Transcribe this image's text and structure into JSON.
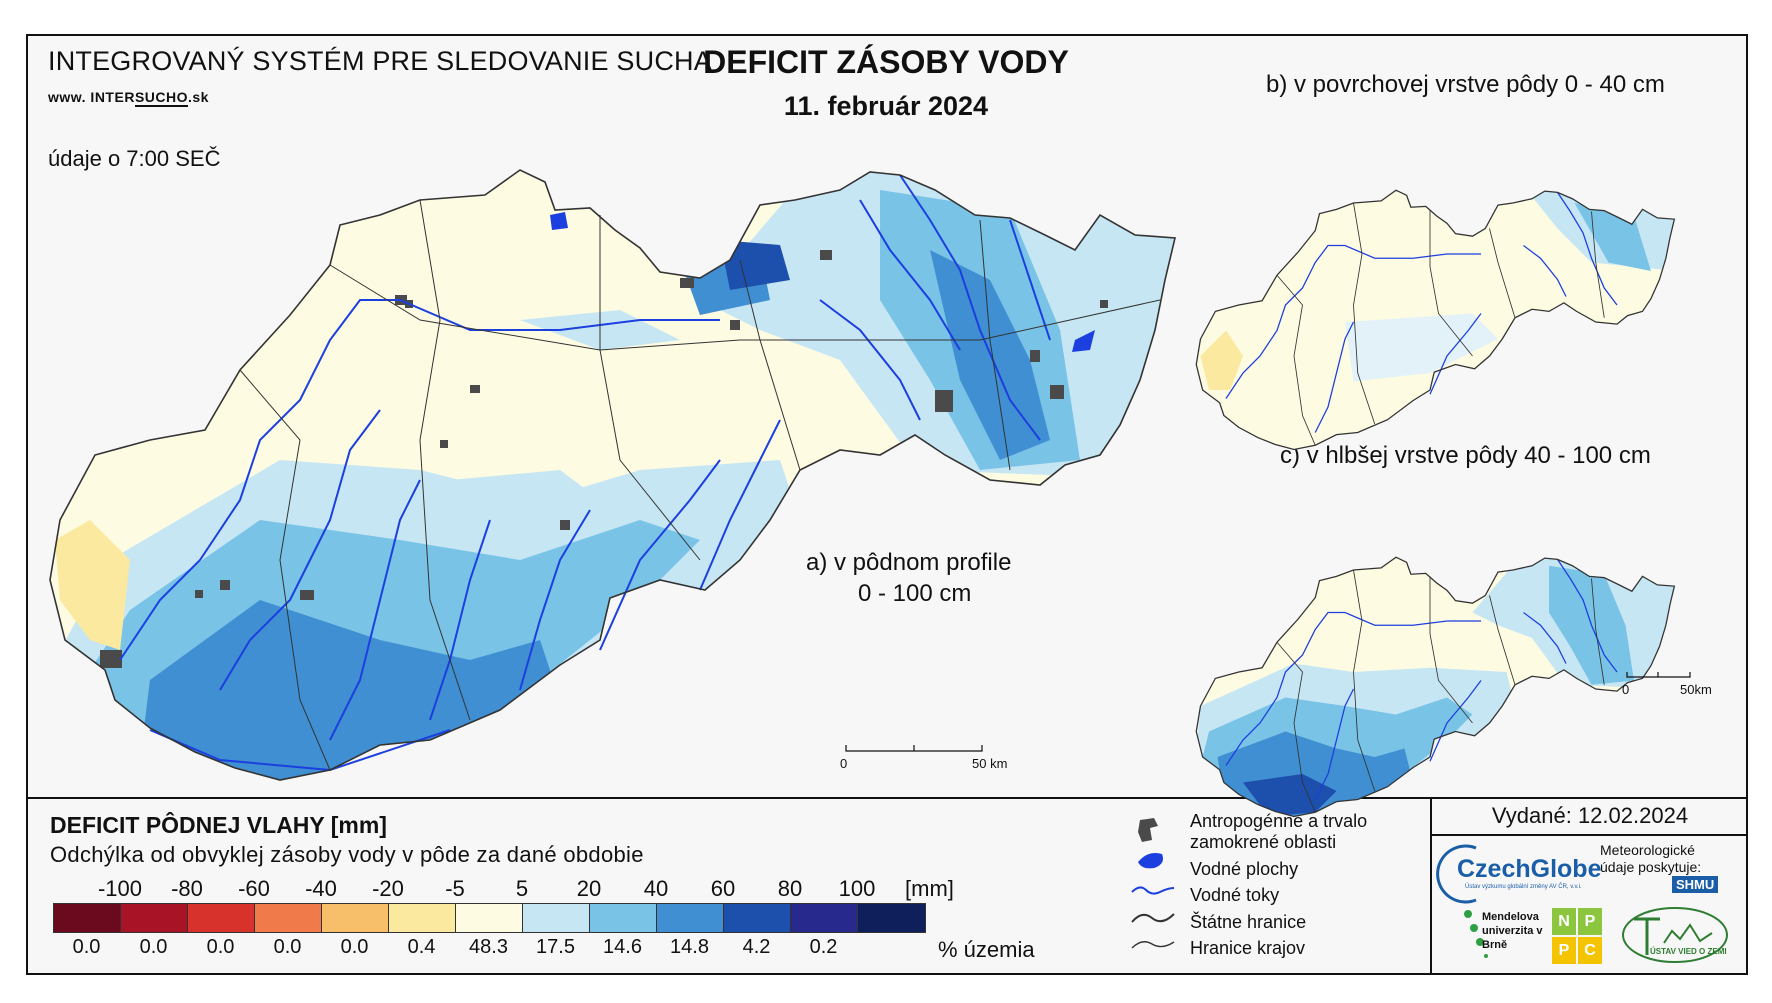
{
  "header": {
    "system_title": "INTEGROVANÝ SYSTÉM PRE SLEDOVANIE SUCHA",
    "website_prefix": "www. INTER",
    "website_highlight": "SUCHO",
    "website_suffix": ".sk",
    "time_note": "údaje o 7:00 SEČ",
    "title": "DEFICIT ZÁSOBY VODY",
    "date": "11. február 2024"
  },
  "panels": {
    "a_line1": "a) v pôdnom profile",
    "a_line2": "0 - 100 cm",
    "b": "b) v povrchovej vrstve pôdy 0 - 40 cm",
    "c": "c) v hlbšej vrstve pôdy 40 - 100 cm"
  },
  "scale_bars": {
    "main_zero": "0",
    "main_end": "50 km",
    "small_zero": "0",
    "small_end": "50km"
  },
  "legend": {
    "title": "DEFICIT PÔDNEJ VLAHY [mm]",
    "subtitle": "Odchýlka od obvyklej zásoby vody v pôde za dané obdobie",
    "unit": "[mm]",
    "percent_unit": "% územia",
    "boundaries": [
      "-100",
      "-80",
      "-60",
      "-40",
      "-20",
      "-5",
      "5",
      "20",
      "40",
      "60",
      "80",
      "100"
    ],
    "classes": [
      {
        "color": "#6b0a1e",
        "percent": "0.0"
      },
      {
        "color": "#a81325",
        "percent": "0.0"
      },
      {
        "color": "#d7332c",
        "percent": "0.0"
      },
      {
        "color": "#f07a4a",
        "percent": "0.0"
      },
      {
        "color": "#f8bf6a",
        "percent": "0.0"
      },
      {
        "color": "#fbe9a0",
        "percent": "0.4"
      },
      {
        "color": "#fdfbe2",
        "percent": "48.3"
      },
      {
        "color": "#c7e6f4",
        "percent": "17.5"
      },
      {
        "color": "#79c3e6",
        "percent": "14.6"
      },
      {
        "color": "#3f8fd2",
        "percent": "14.8"
      },
      {
        "color": "#1d4fad",
        "percent": "4.2"
      },
      {
        "color": "#272a8c",
        "percent": "0.2"
      },
      {
        "color": "#0e1f5c",
        "percent": ""
      }
    ]
  },
  "key": {
    "anthropogenic_line1": "Antropogénne a trvalo",
    "anthropogenic_line2": "zamokrené oblasti",
    "water_bodies": "Vodné plochy",
    "streams": "Vodné toky",
    "state_borders": "Štátne hranice",
    "region_borders": "Hranice krajov"
  },
  "credits": {
    "issued": "Vydané: 12.02.2024",
    "czechglobe": "CzechGlobe",
    "czechglobe_sub": "Ústav výzkumu globální změny AV ČR, v.v.i.",
    "met_line": "Meteorologické údaje poskytuje:",
    "shmu": "SHMU",
    "mendel": "Mendelova univerzita v Brně",
    "nppc": [
      "N",
      "P",
      "P",
      "C"
    ],
    "uvz": "ÚSTAV VIED O ZEMI"
  },
  "colors": {
    "land_base": "#fdfbe2",
    "river": "#1c3fe0",
    "urban": "#4a4a4a",
    "border": "#333333"
  }
}
